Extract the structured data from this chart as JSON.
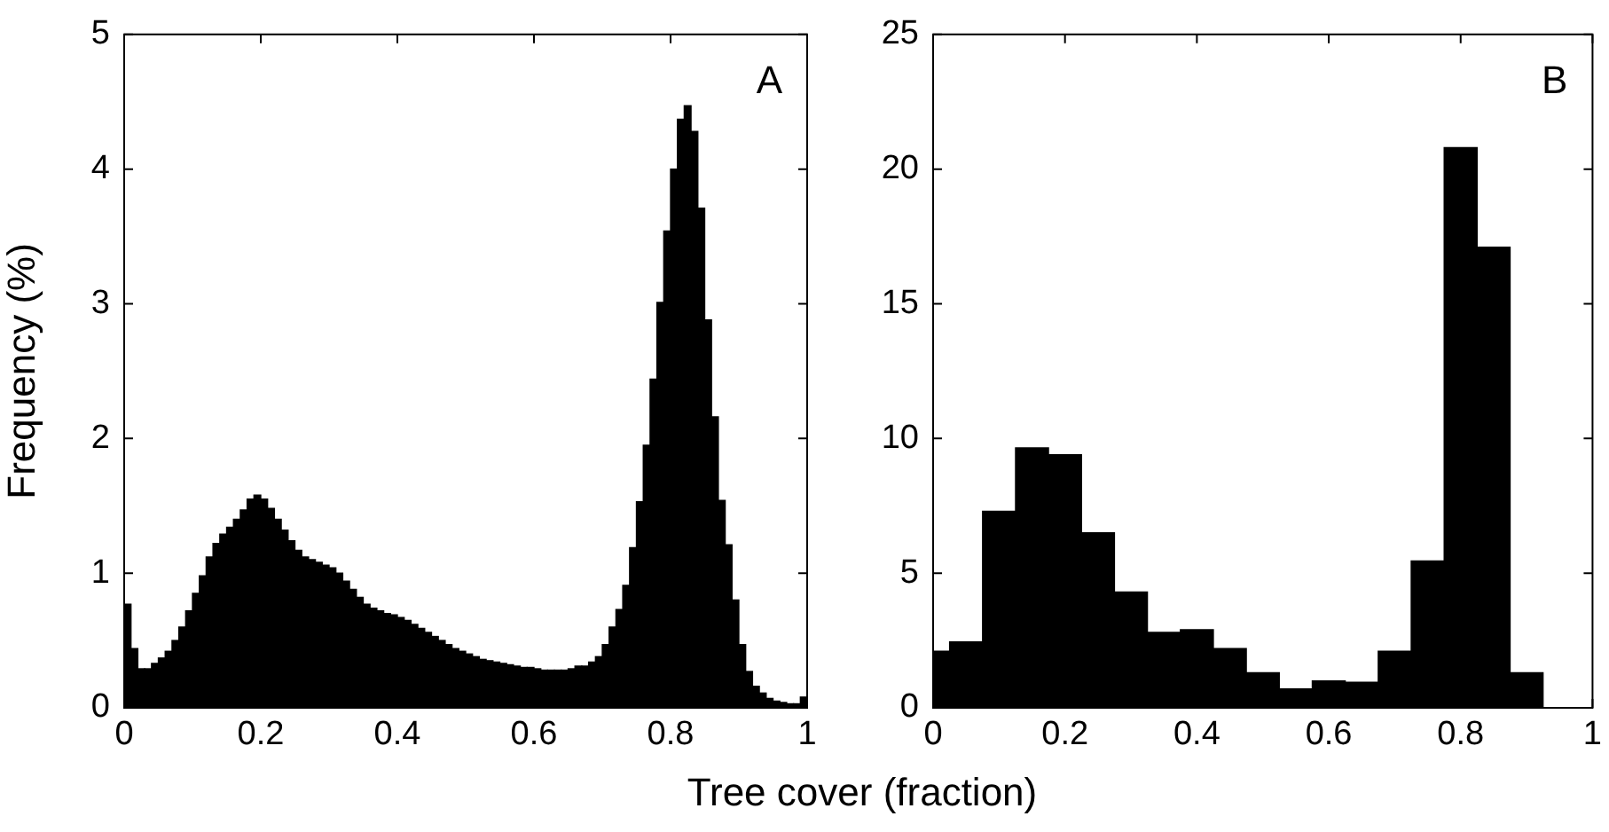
{
  "chart_data": [
    {
      "type": "histogram",
      "ylabel": "Frequency (%)",
      "xlabel": "Tree cover (fraction)",
      "annotations": [
        "A"
      ],
      "color": "#000000",
      "xlim": [
        0,
        1
      ],
      "xticks": [
        0,
        0.2,
        0.4,
        0.6,
        0.8,
        1
      ],
      "ylim": [
        0,
        5
      ],
      "yticks": [
        0,
        1,
        2,
        3,
        4,
        5
      ],
      "grid": false,
      "bins": [
        0,
        0.01,
        0.02,
        0.03,
        0.04,
        0.05,
        0.06,
        0.07,
        0.08,
        0.09,
        0.1,
        0.11,
        0.12,
        0.13,
        0.14,
        0.15,
        0.16,
        0.17,
        0.18,
        0.19,
        0.2,
        0.21,
        0.22,
        0.23,
        0.24,
        0.25,
        0.26,
        0.27,
        0.28,
        0.29,
        0.3,
        0.31,
        0.32,
        0.33,
        0.34,
        0.35,
        0.36,
        0.37,
        0.38,
        0.39,
        0.4,
        0.41,
        0.42,
        0.43,
        0.44,
        0.45,
        0.46,
        0.47,
        0.48,
        0.49,
        0.5,
        0.51,
        0.52,
        0.53,
        0.54,
        0.55,
        0.56,
        0.57,
        0.58,
        0.59,
        0.6,
        0.61,
        0.62,
        0.63,
        0.64,
        0.65,
        0.66,
        0.67,
        0.68,
        0.69,
        0.7,
        0.71,
        0.72,
        0.73,
        0.74,
        0.75,
        0.76,
        0.77,
        0.78,
        0.79,
        0.8,
        0.81,
        0.82,
        0.83,
        0.84,
        0.85,
        0.86,
        0.87,
        0.88,
        0.89,
        0.9,
        0.91,
        0.92,
        0.93,
        0.94,
        0.95,
        0.96,
        0.97,
        0.98,
        0.99,
        1
      ],
      "values": [
        0.77,
        0.44,
        0.29,
        0.29,
        0.33,
        0.37,
        0.42,
        0.5,
        0.6,
        0.72,
        0.85,
        0.98,
        1.12,
        1.22,
        1.29,
        1.34,
        1.4,
        1.47,
        1.55,
        1.58,
        1.55,
        1.48,
        1.4,
        1.32,
        1.24,
        1.17,
        1.12,
        1.1,
        1.08,
        1.06,
        1.04,
        1.0,
        0.94,
        0.88,
        0.82,
        0.77,
        0.74,
        0.72,
        0.7,
        0.69,
        0.67,
        0.65,
        0.62,
        0.59,
        0.56,
        0.53,
        0.5,
        0.47,
        0.44,
        0.42,
        0.4,
        0.38,
        0.36,
        0.35,
        0.34,
        0.33,
        0.32,
        0.31,
        0.3,
        0.3,
        0.29,
        0.28,
        0.28,
        0.28,
        0.28,
        0.29,
        0.31,
        0.31,
        0.34,
        0.38,
        0.47,
        0.6,
        0.73,
        0.91,
        1.19,
        1.53,
        1.95,
        2.44,
        3.01,
        3.54,
        4.0,
        4.37,
        4.47,
        4.28,
        3.71,
        2.88,
        2.16,
        1.54,
        1.21,
        0.8,
        0.47,
        0.27,
        0.16,
        0.11,
        0.07,
        0.05,
        0.04,
        0.03,
        0.03,
        0.08
      ]
    },
    {
      "type": "histogram",
      "annotations": [
        "B"
      ],
      "color": "#000000",
      "xlim": [
        0,
        1
      ],
      "xticks": [
        0,
        0.2,
        0.4,
        0.6,
        0.8,
        1
      ],
      "ylim": [
        0,
        25
      ],
      "yticks": [
        0,
        5,
        10,
        15,
        20,
        25
      ],
      "grid": false,
      "bins": [
        0,
        0.025,
        0.075,
        0.125,
        0.175,
        0.225,
        0.275,
        0.325,
        0.375,
        0.425,
        0.475,
        0.525,
        0.575,
        0.625,
        0.675,
        0.725,
        0.775,
        0.825,
        0.875,
        0.925
      ],
      "values": [
        2.1,
        2.45,
        7.3,
        9.65,
        9.4,
        6.5,
        4.3,
        2.8,
        2.9,
        2.2,
        1.3,
        0.7,
        1.0,
        0.95,
        2.1,
        5.45,
        20.8,
        17.1,
        1.3
      ]
    }
  ]
}
